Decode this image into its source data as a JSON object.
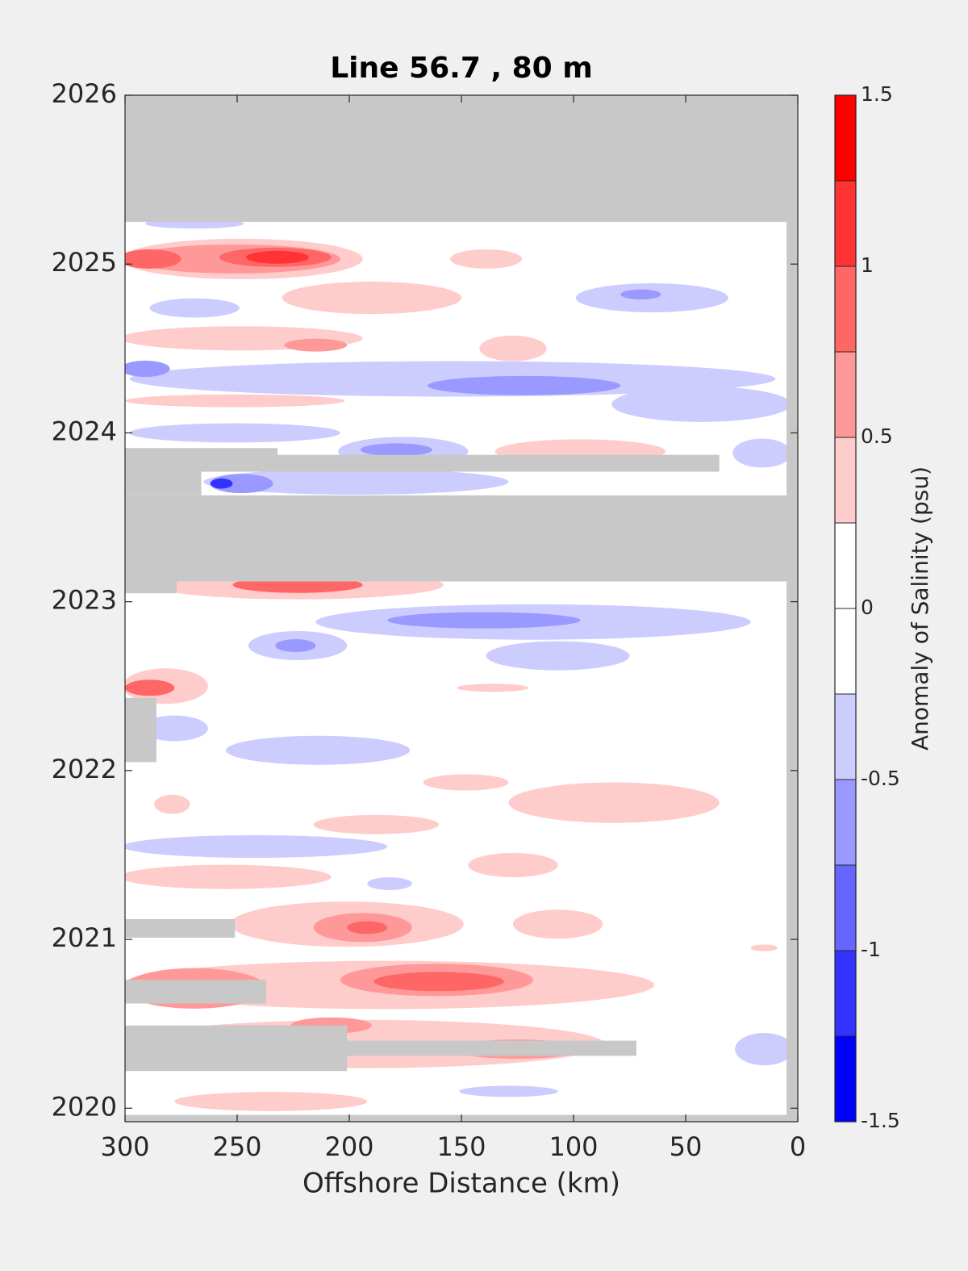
{
  "chart_data": {
    "type": "contour",
    "title": "Line 56.7 , 80 m",
    "x_label": "Offshore Distance (km)",
    "xlim": [
      300,
      0
    ],
    "xticks": [
      300,
      250,
      200,
      150,
      100,
      50,
      0
    ],
    "ylim": [
      2019.92,
      2026
    ],
    "yticks": [
      2020,
      2021,
      2022,
      2023,
      2024,
      2025,
      2026
    ],
    "nodata_color": "#c8c8c8",
    "colorbar": {
      "label": "Anomaly of Salinity (psu)",
      "levels": [
        -1.5,
        -1.25,
        -1,
        -0.75,
        -0.5,
        -0.25,
        0,
        0.25,
        0.5,
        0.75,
        1,
        1.25,
        1.5
      ],
      "colors": [
        "#0000ff",
        "#3333ff",
        "#6666ff",
        "#9999ff",
        "#ccccff",
        "#ffffff",
        "#ffffff",
        "#ffcccc",
        "#ff9999",
        "#ff6666",
        "#ff3333",
        "#ff0000"
      ],
      "ticks": [
        -1.5,
        -1,
        -0.5,
        0,
        0.5,
        1,
        1.5
      ]
    },
    "contours": [
      {
        "level": -0.25,
        "x": 269,
        "y": 2025.24,
        "rx": 22,
        "ry": 0.03
      },
      {
        "level": 0.25,
        "x": 248,
        "y": 2025.03,
        "rx": 54,
        "ry": 0.12
      },
      {
        "level": 0.5,
        "x": 251,
        "y": 2025.03,
        "rx": 47,
        "ry": 0.086
      },
      {
        "level": 0.75,
        "x": 289,
        "y": 2025.03,
        "rx": 14,
        "ry": 0.057
      },
      {
        "level": 0.75,
        "x": 233,
        "y": 2025.04,
        "rx": 25,
        "ry": 0.057
      },
      {
        "level": 1,
        "x": 232,
        "y": 2025.04,
        "rx": 14,
        "ry": 0.038
      },
      {
        "level": 0.25,
        "x": 190,
        "y": 2024.8,
        "rx": 40,
        "ry": 0.096
      },
      {
        "level": 0.25,
        "x": 139,
        "y": 2025.03,
        "rx": 16,
        "ry": 0.057
      },
      {
        "level": -0.25,
        "x": 65,
        "y": 2024.8,
        "rx": 34,
        "ry": 0.086
      },
      {
        "level": -0.5,
        "x": 70,
        "y": 2024.82,
        "rx": 9,
        "ry": 0.03
      },
      {
        "level": -0.25,
        "x": 269,
        "y": 2024.74,
        "rx": 20,
        "ry": 0.057
      },
      {
        "level": 0.25,
        "x": 248,
        "y": 2024.56,
        "rx": 54,
        "ry": 0.072
      },
      {
        "level": 0.5,
        "x": 215,
        "y": 2024.52,
        "rx": 14,
        "ry": 0.038
      },
      {
        "level": 0.25,
        "x": 127,
        "y": 2024.5,
        "rx": 15,
        "ry": 0.076
      },
      {
        "level": -0.25,
        "x": 154,
        "y": 2024.32,
        "rx": 144,
        "ry": 0.105
      },
      {
        "level": -0.25,
        "x": 43,
        "y": 2024.17,
        "rx": 40,
        "ry": 0.105
      },
      {
        "level": -0.5,
        "x": 122,
        "y": 2024.28,
        "rx": 43,
        "ry": 0.057
      },
      {
        "level": -0.5,
        "x": 291,
        "y": 2024.38,
        "rx": 11,
        "ry": 0.048
      },
      {
        "level": 0.25,
        "x": 251,
        "y": 2024.19,
        "rx": 49,
        "ry": 0.038
      },
      {
        "level": -0.25,
        "x": 251,
        "y": 2024.0,
        "rx": 47,
        "ry": 0.057
      },
      {
        "level": -0.25,
        "x": 176,
        "y": 2023.89,
        "rx": 29,
        "ry": 0.086
      },
      {
        "level": -0.5,
        "x": 179,
        "y": 2023.9,
        "rx": 16,
        "ry": 0.038
      },
      {
        "level": 0.25,
        "x": 97,
        "y": 2023.89,
        "rx": 38,
        "ry": 0.072
      },
      {
        "level": -0.25,
        "x": 16,
        "y": 2023.88,
        "rx": 13,
        "ry": 0.086
      },
      {
        "level": -0.25,
        "x": 197,
        "y": 2023.71,
        "rx": 68,
        "ry": 0.076
      },
      {
        "level": -0.5,
        "x": 248,
        "y": 2023.7,
        "rx": 14,
        "ry": 0.057
      },
      {
        "level": -1,
        "x": 257,
        "y": 2023.7,
        "rx": 5,
        "ry": 0.03
      },
      {
        "level": 0.25,
        "x": 223,
        "y": 2023.1,
        "rx": 65,
        "ry": 0.086
      },
      {
        "level": 0.75,
        "x": 223,
        "y": 2023.1,
        "rx": 29,
        "ry": 0.048
      },
      {
        "level": -0.25,
        "x": 118,
        "y": 2022.88,
        "rx": 97,
        "ry": 0.105
      },
      {
        "level": -0.5,
        "x": 140,
        "y": 2022.89,
        "rx": 43,
        "ry": 0.048
      },
      {
        "level": -0.25,
        "x": 223,
        "y": 2022.74,
        "rx": 22,
        "ry": 0.086
      },
      {
        "level": -0.5,
        "x": 224,
        "y": 2022.74,
        "rx": 9,
        "ry": 0.038
      },
      {
        "level": -0.25,
        "x": 107,
        "y": 2022.68,
        "rx": 32,
        "ry": 0.086
      },
      {
        "level": 0.25,
        "x": 282,
        "y": 2022.5,
        "rx": 19,
        "ry": 0.105
      },
      {
        "level": 0.75,
        "x": 289,
        "y": 2022.49,
        "rx": 11,
        "ry": 0.048
      },
      {
        "level": -0.25,
        "x": 278,
        "y": 2022.25,
        "rx": 15,
        "ry": 0.076
      },
      {
        "level": -0.25,
        "x": 214,
        "y": 2022.12,
        "rx": 41,
        "ry": 0.086
      },
      {
        "level": 0.25,
        "x": 136,
        "y": 2022.49,
        "rx": 16,
        "ry": 0.024
      },
      {
        "level": 0.25,
        "x": 148,
        "y": 2021.93,
        "rx": 19,
        "ry": 0.048
      },
      {
        "level": 0.25,
        "x": 82,
        "y": 2021.81,
        "rx": 47,
        "ry": 0.12
      },
      {
        "level": 0.25,
        "x": 279,
        "y": 2021.8,
        "rx": 8,
        "ry": 0.057
      },
      {
        "level": 0.25,
        "x": 188,
        "y": 2021.68,
        "rx": 28,
        "ry": 0.057
      },
      {
        "level": -0.25,
        "x": 242,
        "y": 2021.55,
        "rx": 59,
        "ry": 0.067
      },
      {
        "level": 0.25,
        "x": 127,
        "y": 2021.44,
        "rx": 20,
        "ry": 0.072
      },
      {
        "level": 0.25,
        "x": 255,
        "y": 2021.37,
        "rx": 47,
        "ry": 0.072
      },
      {
        "level": -0.25,
        "x": 182,
        "y": 2021.33,
        "rx": 10,
        "ry": 0.038
      },
      {
        "level": 0.25,
        "x": 201,
        "y": 2021.09,
        "rx": 52,
        "ry": 0.134
      },
      {
        "level": 0.5,
        "x": 194,
        "y": 2021.07,
        "rx": 22,
        "ry": 0.086
      },
      {
        "level": 0.75,
        "x": 192,
        "y": 2021.07,
        "rx": 9,
        "ry": 0.038
      },
      {
        "level": 0.25,
        "x": 107,
        "y": 2021.09,
        "rx": 20,
        "ry": 0.086
      },
      {
        "level": 0.25,
        "x": 15,
        "y": 2020.95,
        "rx": 6,
        "ry": 0.02
      },
      {
        "level": 0.25,
        "x": 183,
        "y": 2020.73,
        "rx": 119,
        "ry": 0.143
      },
      {
        "level": 0.5,
        "x": 161,
        "y": 2020.76,
        "rx": 43,
        "ry": 0.096
      },
      {
        "level": 0.75,
        "x": 160,
        "y": 2020.75,
        "rx": 29,
        "ry": 0.057
      },
      {
        "level": 0.5,
        "x": 269,
        "y": 2020.71,
        "rx": 32,
        "ry": 0.12
      },
      {
        "level": 0.25,
        "x": 194,
        "y": 2020.38,
        "rx": 108,
        "ry": 0.143
      },
      {
        "level": 0.5,
        "x": 208,
        "y": 2020.49,
        "rx": 18,
        "ry": 0.048
      },
      {
        "level": 0.5,
        "x": 125,
        "y": 2020.35,
        "rx": 29,
        "ry": 0.057
      },
      {
        "level": -0.25,
        "x": 15,
        "y": 2020.35,
        "rx": 13,
        "ry": 0.096
      },
      {
        "level": -0.25,
        "x": 129,
        "y": 2020.1,
        "rx": 22,
        "ry": 0.033
      },
      {
        "level": 0.25,
        "x": 235,
        "y": 2020.04,
        "rx": 43,
        "ry": 0.057
      }
    ],
    "no_data": [
      {
        "x": [
          300,
          0
        ],
        "y": [
          2025.25,
          2026
        ]
      },
      {
        "x": [
          5,
          0
        ],
        "y": [
          2019.92,
          2025.25
        ]
      },
      {
        "x": [
          300,
          0
        ],
        "y": [
          2019.92,
          2019.96
        ]
      },
      {
        "x": [
          300,
          232
        ],
        "y": [
          2023.77,
          2023.91
        ]
      },
      {
        "x": [
          300,
          35
        ],
        "y": [
          2023.77,
          2023.87
        ]
      },
      {
        "x": [
          300,
          266
        ],
        "y": [
          2023.63,
          2023.77
        ]
      },
      {
        "x": [
          300,
          5
        ],
        "y": [
          2023.12,
          2023.63
        ]
      },
      {
        "x": [
          300,
          277
        ],
        "y": [
          2023.05,
          2023.12
        ]
      },
      {
        "x": [
          300,
          286
        ],
        "y": [
          2022.05,
          2022.43
        ]
      },
      {
        "x": [
          300,
          251
        ],
        "y": [
          2021.01,
          2021.12
        ]
      },
      {
        "x": [
          300,
          237
        ],
        "y": [
          2020.62,
          2020.76
        ]
      },
      {
        "x": [
          300,
          72
        ],
        "y": [
          2020.31,
          2020.4
        ]
      },
      {
        "x": [
          300,
          201
        ],
        "y": [
          2020.22,
          2020.49
        ]
      }
    ]
  }
}
